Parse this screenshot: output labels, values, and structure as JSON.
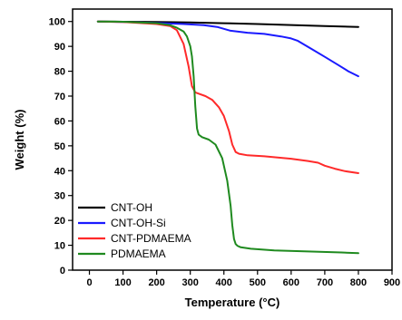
{
  "chart_data": {
    "type": "line",
    "title": "",
    "xlabel": "Temperature (°C)",
    "ylabel": "Weight (%)",
    "xlim": [
      -50,
      900
    ],
    "ylim": [
      0,
      105
    ],
    "x_ticks": [
      0,
      100,
      200,
      300,
      400,
      500,
      600,
      700,
      800,
      900
    ],
    "y_ticks": [
      0,
      10,
      20,
      30,
      40,
      50,
      60,
      70,
      80,
      90,
      100
    ],
    "grid": false,
    "legend_position": "bottom-left",
    "series": [
      {
        "name": "CNT-OH",
        "color": "#000000",
        "x": [
          25,
          100,
          200,
          300,
          400,
          500,
          600,
          700,
          800
        ],
        "y": [
          100,
          99.9,
          99.8,
          99.6,
          99.3,
          99.0,
          98.6,
          98.2,
          97.8
        ]
      },
      {
        "name": "CNT-OH-Si",
        "color": "#1a1aff",
        "x": [
          25,
          100,
          200,
          280,
          340,
          380,
          420,
          470,
          520,
          570,
          600,
          620,
          660,
          700,
          740,
          770,
          800
        ],
        "y": [
          100,
          99.8,
          99.4,
          99.0,
          98.5,
          97.8,
          96.3,
          95.5,
          95.0,
          94.0,
          93.2,
          92.2,
          89.0,
          85.8,
          82.5,
          80.0,
          78.0
        ]
      },
      {
        "name": "CNT-PDMAEMA",
        "color": "#ff2a2a",
        "x": [
          25,
          100,
          200,
          240,
          260,
          280,
          295,
          305,
          315,
          325,
          345,
          365,
          385,
          400,
          415,
          425,
          435,
          445,
          470,
          520,
          600,
          650,
          680,
          700,
          730,
          760,
          800
        ],
        "y": [
          100,
          99.8,
          99.0,
          98.2,
          96.5,
          91.0,
          82.0,
          74.0,
          71.5,
          71.0,
          70.0,
          68.5,
          65.5,
          62.0,
          56.0,
          50.5,
          47.5,
          46.8,
          46.2,
          45.8,
          44.8,
          43.9,
          43.2,
          42.0,
          40.8,
          39.8,
          39.0
        ]
      },
      {
        "name": "PDMAEMA",
        "color": "#1f8a1f",
        "x": [
          25,
          100,
          200,
          240,
          260,
          280,
          290,
          300,
          305,
          310,
          315,
          320,
          325,
          335,
          355,
          375,
          395,
          410,
          420,
          425,
          430,
          435,
          440,
          450,
          480,
          550,
          650,
          750,
          800
        ],
        "y": [
          100,
          99.9,
          99.3,
          98.5,
          97.5,
          96.0,
          94.0,
          90.0,
          86.0,
          78.0,
          66.0,
          57.0,
          54.5,
          53.5,
          52.5,
          50.5,
          45.0,
          36.0,
          26.0,
          18.0,
          12.5,
          10.5,
          9.8,
          9.2,
          8.6,
          7.9,
          7.5,
          7.1,
          6.8
        ]
      }
    ]
  }
}
